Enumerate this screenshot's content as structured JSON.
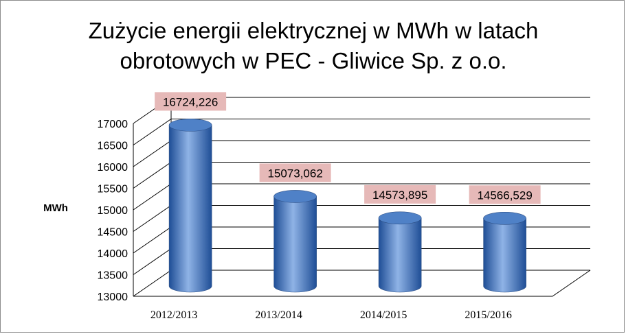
{
  "chart_data": {
    "type": "bar",
    "title_lines": [
      "Zużycie energii elektrycznej w MWh w latach",
      "obrotowych w PEC - Gliwice Sp. z o.o."
    ],
    "ylabel": "MWh",
    "xlabel": "",
    "categories": [
      "2012/2013",
      "2013/2014",
      "2014/2015",
      "2015/2016"
    ],
    "values": [
      16724.226,
      15073.062,
      14573.895,
      14566.529
    ],
    "data_labels": [
      "16724,226",
      "15073,062",
      "14573,895",
      "14566,529"
    ],
    "ylim": [
      13000,
      17000
    ],
    "y_ticks": [
      "13000",
      "13500",
      "14000",
      "14500",
      "15000",
      "15500",
      "16000",
      "16500",
      "17000"
    ],
    "grid": true,
    "style": "3d-cylinder",
    "colors": {
      "bar_dark": "#1f4e96",
      "bar_mid": "#4f81c7",
      "bar_light": "#8fb3e6",
      "label_bg": "#e6b9b8",
      "grid": "#000000"
    }
  }
}
